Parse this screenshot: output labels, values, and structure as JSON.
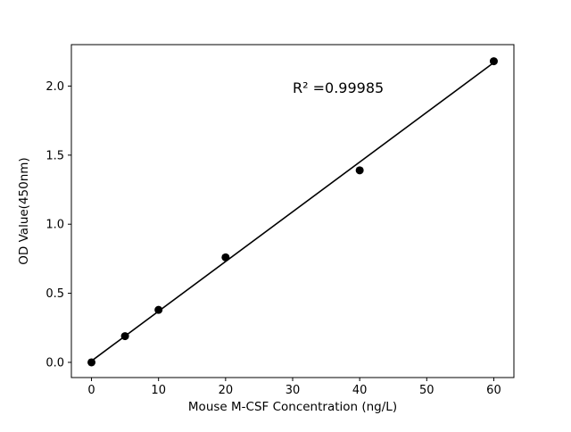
{
  "figure": {
    "background": "#ffffff"
  },
  "chart_data": {
    "type": "scatter",
    "title": "",
    "xlabel": "Mouse M-CSF Concentration (ng/L)",
    "ylabel": "OD Value(450nm)",
    "annotation": {
      "text": "R² =0.99985",
      "x": 30,
      "y": 1.95
    },
    "points": {
      "x": [
        0,
        5,
        10,
        20,
        40,
        60
      ],
      "y": [
        0.0,
        0.19,
        0.38,
        0.76,
        1.39,
        2.18
      ]
    },
    "fit_line": {
      "x": [
        0,
        60
      ],
      "y": [
        0.01,
        2.17
      ]
    },
    "xticks": {
      "values": [
        0,
        10,
        20,
        30,
        40,
        50,
        60
      ],
      "labels": [
        "0",
        "10",
        "20",
        "30",
        "40",
        "50",
        "60"
      ]
    },
    "yticks": {
      "values": [
        0,
        0.5,
        1.0,
        1.5,
        2.0
      ],
      "labels": [
        "0.0",
        "0.5",
        "1.0",
        "1.5",
        "2.0"
      ]
    },
    "xlim": [
      -3,
      63
    ],
    "ylim": [
      -0.11,
      2.3
    ],
    "grid": false,
    "legend": "none",
    "marker_color": "#000000",
    "line_color": "#000000",
    "axis_color": "#000000"
  }
}
